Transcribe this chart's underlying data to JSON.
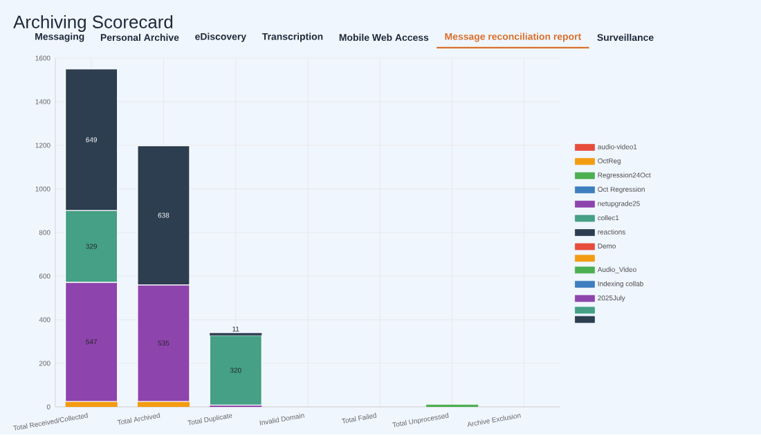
{
  "chart_data": {
    "type": "bar",
    "stacked": true,
    "title": "Archiving Scorecard",
    "subtitle": "Message reconciliation report",
    "annotations": [
      "Messaging",
      "Personal Archive",
      "eDiscovery",
      "Transcription",
      "Mobile Web Access",
      "Surveillance"
    ],
    "categories": [
      "Total Received/Collected",
      "Total Archived",
      "Total Duplicate",
      "Invalid Domain",
      "Total Failed",
      "Total Unprocessed",
      "Archive Exclusion"
    ],
    "ylim": [
      0,
      1600
    ],
    "yticks": [
      0,
      200,
      400,
      600,
      800,
      1000,
      1200,
      1400,
      1600
    ],
    "grid": true,
    "legend": "right",
    "series": [
      {
        "name": "audio-video1",
        "color": "#e74c3c",
        "values": [
          null,
          null,
          null,
          null,
          null,
          null,
          null
        ]
      },
      {
        "name": "OctReg",
        "color": "#f39c12",
        "values": [
          25,
          25,
          null,
          null,
          null,
          null,
          null
        ]
      },
      {
        "name": "Regression24Oct",
        "color": "#4caf50",
        "values": [
          null,
          null,
          null,
          null,
          null,
          10,
          null
        ]
      },
      {
        "name": "Oct Regression",
        "color": "#3d7ebf",
        "values": [
          null,
          null,
          null,
          null,
          null,
          null,
          null
        ]
      },
      {
        "name": "netupgrade25",
        "color": "#8e44ad",
        "values": [
          547,
          535,
          8,
          null,
          null,
          null,
          null
        ],
        "value_labels": [
          "547",
          "535",
          null,
          null,
          null,
          null,
          null
        ]
      },
      {
        "name": "collec1",
        "color": "#45a085",
        "values": [
          329,
          null,
          320,
          null,
          null,
          null,
          null
        ],
        "value_labels": [
          "329",
          null,
          "320",
          null,
          null,
          null,
          null
        ]
      },
      {
        "name": "reactions",
        "color": "#2c3e50",
        "values": [
          649,
          638,
          11,
          null,
          null,
          null,
          null
        ],
        "value_labels": [
          "649",
          "638",
          "11",
          null,
          null,
          null,
          null
        ]
      },
      {
        "name": "Demo",
        "color": "#e74c3c",
        "values": [
          null,
          null,
          null,
          null,
          null,
          null,
          null
        ]
      },
      {
        "color": "#f39c12",
        "values": [
          null,
          null,
          null,
          null,
          null,
          null,
          null
        ]
      },
      {
        "name": "Audio_Video",
        "color": "#4caf50",
        "values": [
          null,
          null,
          null,
          null,
          null,
          null,
          null
        ]
      },
      {
        "name": "Indexing collab",
        "color": "#3d7ebf",
        "values": [
          null,
          null,
          null,
          null,
          null,
          null,
          null
        ]
      },
      {
        "name": "2025July",
        "color": "#8e44ad",
        "values": [
          null,
          null,
          null,
          null,
          null,
          null,
          null
        ]
      },
      {
        "color": "#45a085",
        "values": [
          null,
          null,
          null,
          null,
          null,
          null,
          null
        ]
      },
      {
        "color": "#2c3e50",
        "values": [
          null,
          null,
          null,
          null,
          null,
          null,
          null
        ]
      }
    ]
  }
}
